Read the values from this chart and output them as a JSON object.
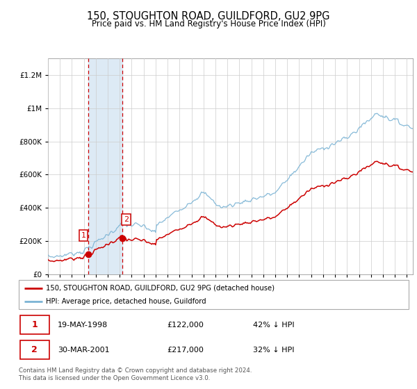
{
  "title": "150, STOUGHTON ROAD, GUILDFORD, GU2 9PG",
  "subtitle": "Price paid vs. HM Land Registry's House Price Index (HPI)",
  "hpi_line_color": "#7ab3d4",
  "property_line_color": "#cc0000",
  "purchase1_date_num": 1998.37,
  "purchase1_price": 122000,
  "purchase2_date_num": 2001.24,
  "purchase2_price": 217000,
  "shade_color": "#ddeaf5",
  "dashed_line_color": "#cc0000",
  "legend_line1": "150, STOUGHTON ROAD, GUILDFORD, GU2 9PG (detached house)",
  "legend_line2": "HPI: Average price, detached house, Guildford",
  "annotation1_label": "1",
  "annotation1_date": "19-MAY-1998",
  "annotation1_price": "£122,000",
  "annotation1_hpi": "42% ↓ HPI",
  "annotation2_label": "2",
  "annotation2_date": "30-MAR-2001",
  "annotation2_price": "£217,000",
  "annotation2_hpi": "32% ↓ HPI",
  "footer": "Contains HM Land Registry data © Crown copyright and database right 2024.\nThis data is licensed under the Open Government Licence v3.0.",
  "ylim_max": 1300000,
  "xlim_start": 1995.5,
  "xlim_end": 2025.5
}
